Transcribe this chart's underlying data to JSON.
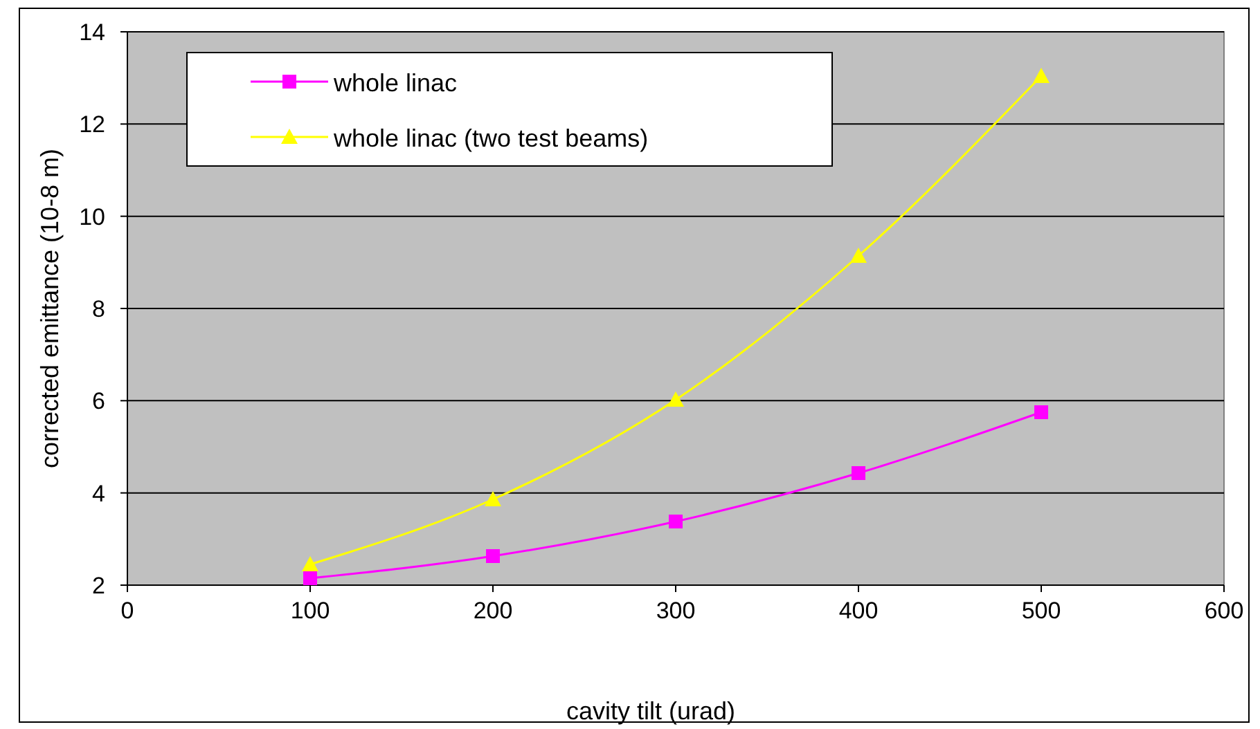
{
  "chart_data": {
    "type": "line",
    "xlabel": "cavity tilt (urad)",
    "ylabel": "corrected emittance (10-8 m)",
    "x": [
      100,
      200,
      300,
      400,
      500
    ],
    "series": [
      {
        "name": "whole linac",
        "color": "#ff00ff",
        "marker": "square",
        "values": [
          2.15,
          2.63,
          3.38,
          4.43,
          5.75
        ]
      },
      {
        "name": "whole linac (two test beams)",
        "color": "#ffff00",
        "marker": "triangle",
        "values": [
          2.45,
          3.86,
          6.02,
          9.14,
          13.04
        ]
      }
    ],
    "xlim": [
      0,
      600
    ],
    "xticks": [
      0,
      100,
      200,
      300,
      400,
      500,
      600
    ],
    "ylim": [
      2,
      14
    ],
    "yticks": [
      2,
      4,
      6,
      8,
      10,
      12,
      14
    ],
    "grid": "y",
    "legend": "top left"
  }
}
